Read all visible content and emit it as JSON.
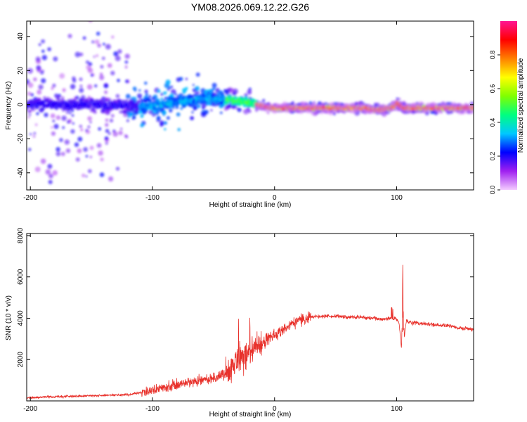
{
  "title": "YM08.2026.069.12.22.G26",
  "chart_data": [
    {
      "type": "heatmap",
      "name": "spectrogram",
      "xlabel": "Height of straight line (km)",
      "ylabel": "Frequency (Hz)",
      "xlim": [
        -203,
        163
      ],
      "ylim": [
        -50,
        49
      ],
      "xticks": [
        -200,
        -100,
        0,
        100
      ],
      "xtick_labels": [
        "-200",
        "-100",
        "0",
        "100"
      ],
      "yticks": [
        -40,
        -20,
        0,
        20,
        40
      ],
      "ytick_labels": [
        "-40",
        "-20",
        "0",
        "20",
        "40"
      ],
      "colorbar": {
        "label": "Normalized spectral amplitude",
        "range": [
          0,
          1
        ],
        "ticks": [
          0.0,
          0.2,
          0.4,
          0.6,
          0.8
        ],
        "tick_labels": [
          "0.0",
          "0.2",
          "0.4",
          "0.6",
          "0.8"
        ],
        "colors": [
          "#f4ccff",
          "#a020f0",
          "#0000ff",
          "#00c8ff",
          "#00ff80",
          "#80ff00",
          "#ffff00",
          "#ff8000",
          "#ff0000",
          "#ff1493"
        ]
      },
      "ridge": {
        "x": [
          -200,
          -150,
          -110,
          -80,
          -55,
          -40,
          -30,
          -25,
          -20,
          -15,
          -10,
          0,
          20,
          50,
          75,
          80,
          85,
          95,
          98,
          100,
          105,
          130,
          163
        ],
        "frequency_hz": [
          0,
          0,
          -1,
          1,
          4,
          3,
          2,
          2,
          1,
          0,
          -1,
          -2,
          -2,
          -2,
          -2,
          -3,
          -3,
          -2,
          -1,
          1,
          -2,
          -2,
          -2
        ]
      }
    },
    {
      "type": "line",
      "name": "snr",
      "xlabel": "Height of straight line (km)",
      "ylabel": "SNR (10 * v/v)",
      "xlim": [
        -203,
        163
      ],
      "ylim": [
        0,
        8100
      ],
      "xticks": [
        -200,
        -100,
        0,
        100
      ],
      "xtick_labels": [
        "-200",
        "-100",
        "0",
        "100"
      ],
      "yticks": [
        2000,
        4000,
        6000,
        8000
      ],
      "ytick_labels": [
        "2000",
        "4000",
        "6000",
        "8000"
      ],
      "color": "#e8302a",
      "series": [
        {
          "name": "SNR",
          "x": [
            -203,
            -180,
            -150,
            -120,
            -100,
            -90,
            -80,
            -70,
            -60,
            -50,
            -40,
            -35,
            -30,
            -25,
            -20,
            -15,
            -10,
            -5,
            0,
            10,
            20,
            30,
            40,
            50,
            60,
            70,
            80,
            90,
            95,
            100,
            102,
            104,
            105,
            106,
            108,
            110,
            120,
            130,
            140,
            150,
            163
          ],
          "y": [
            150,
            200,
            250,
            300,
            500,
            650,
            800,
            900,
            1000,
            1100,
            1300,
            1600,
            2000,
            2200,
            2400,
            2600,
            2800,
            3000,
            3200,
            3600,
            3900,
            4050,
            4100,
            4100,
            4050,
            4050,
            4000,
            3950,
            4000,
            3950,
            3700,
            2500,
            6000,
            3000,
            3900,
            3800,
            3750,
            3700,
            3650,
            3550,
            3450
          ]
        }
      ]
    }
  ]
}
